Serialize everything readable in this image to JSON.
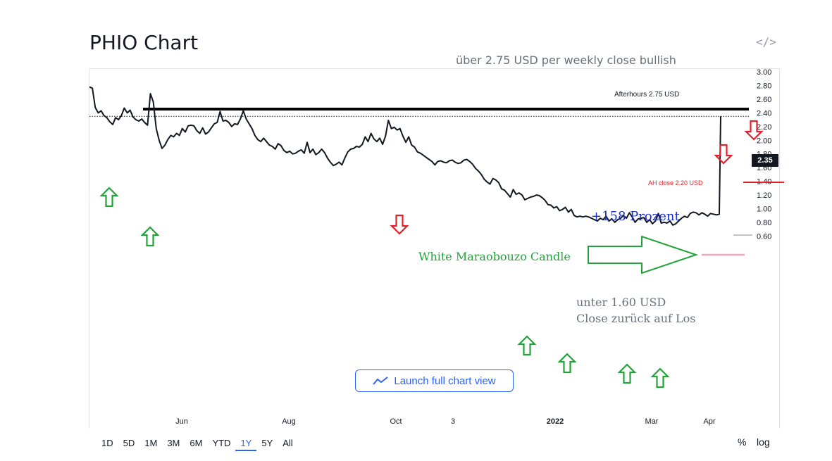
{
  "header": {
    "title": "PHIO Chart",
    "embed_icon": "code-icon"
  },
  "chart_data": {
    "type": "line",
    "title": "PHIO Chart",
    "ylim": [
      0.55,
      3.0
    ],
    "y_ticks": [
      "3.00",
      "2.80",
      "2.60",
      "2.40",
      "2.20",
      "2.00",
      "1.80",
      "1.60",
      "1.40",
      "1.20",
      "1.00",
      "0.80",
      "0.60"
    ],
    "x_ticks": [
      {
        "label": "Jun",
        "bold": false
      },
      {
        "label": "Aug",
        "bold": false
      },
      {
        "label": "Oct",
        "bold": false
      },
      {
        "label": "3",
        "bold": false
      },
      {
        "label": "2022",
        "bold": true
      },
      {
        "label": "Mar",
        "bold": false
      },
      {
        "label": "Apr",
        "bold": false
      }
    ],
    "last_price": "2.35",
    "series": [
      {
        "values": [
          2.78,
          2.76,
          2.48,
          2.4,
          2.43,
          2.36,
          2.33,
          2.27,
          2.23,
          2.33,
          2.3,
          2.36,
          2.47,
          2.4,
          2.44,
          2.34,
          2.3,
          2.28,
          2.31,
          2.26,
          2.22,
          2.68,
          2.56,
          2.17,
          2.0,
          1.88,
          1.93,
          2.01,
          2.07,
          2.05,
          2.1,
          2.07,
          2.17,
          2.12,
          2.21,
          2.22,
          2.21,
          2.14,
          2.1,
          2.18,
          2.09,
          2.12,
          2.18,
          2.24,
          2.26,
          2.42,
          2.28,
          2.29,
          2.26,
          2.2,
          2.24,
          2.23,
          2.31,
          2.43,
          2.31,
          2.24,
          2.17,
          2.07,
          2.01,
          1.98,
          2.03,
          1.98,
          1.93,
          1.91,
          1.87,
          1.95,
          1.92,
          1.85,
          1.82,
          1.84,
          1.8,
          1.81,
          1.84,
          1.86,
          1.81,
          1.97,
          1.82,
          1.87,
          1.79,
          1.82,
          1.87,
          1.82,
          1.74,
          1.68,
          1.63,
          1.65,
          1.68,
          1.64,
          1.74,
          1.83,
          1.87,
          1.88,
          1.91,
          1.9,
          1.94,
          2.05,
          1.98,
          2.1,
          2.02,
          1.98,
          2.03,
          1.94,
          2.06,
          2.29,
          2.17,
          2.19,
          2.15,
          2.17,
          2.06,
          1.97,
          2.05,
          1.93,
          1.9,
          1.83,
          1.81,
          1.78,
          1.75,
          1.72,
          1.69,
          1.64,
          1.69,
          1.7,
          1.68,
          1.67,
          1.7,
          1.71,
          1.68,
          1.66,
          1.67,
          1.71,
          1.72,
          1.69,
          1.65,
          1.59,
          1.55,
          1.5,
          1.43,
          1.39,
          1.36,
          1.44,
          1.42,
          1.38,
          1.29,
          1.27,
          1.22,
          1.17,
          1.28,
          1.21,
          1.23,
          1.2,
          1.13,
          1.15,
          1.17,
          1.18,
          1.2,
          1.19,
          1.16,
          1.12,
          1.06,
          1.05,
          1.01,
          1.03,
          0.97,
          0.99,
          1.02,
          0.95,
          0.99,
          0.9,
          0.88,
          0.89,
          0.88,
          0.89,
          0.88,
          0.86,
          0.84,
          0.82,
          0.86,
          0.84,
          0.89,
          0.82,
          0.85,
          0.8,
          0.84,
          0.86,
          0.9,
          0.86,
          0.94,
          0.88,
          0.8,
          0.85,
          0.86,
          0.87,
          0.8,
          0.84,
          0.78,
          0.82,
          0.93,
          0.79,
          0.8,
          0.79,
          0.82,
          0.76,
          0.78,
          0.82,
          0.86,
          0.89,
          0.87,
          0.93,
          0.95,
          0.94,
          0.91,
          0.94,
          0.92,
          0.89,
          0.93,
          0.92,
          0.91,
          0.92,
          2.35
        ]
      }
    ]
  },
  "annotations": {
    "weekly_close": "über 2.75 USD per weekly close bullish",
    "afterhours": "Afterhours 2.75 USD",
    "ah_close": "AH close 2.20 USD",
    "prozent": "+158 Prozent",
    "candle": "White Maraobouzo Candle",
    "unter_line1": "unter 1.60 USD",
    "unter_line2": "Close zurück auf Los"
  },
  "colors": {
    "line": "#131722",
    "green_arrow": "#22a33a",
    "red_arrow": "#e0202a",
    "blue_text": "#1a2fd1",
    "accent": "#2962ff",
    "pink_line": "#f4a6c1"
  },
  "launch_button": {
    "label": "Launch full chart view",
    "icon": "trend-line-icon"
  },
  "ranges": [
    {
      "label": "1D",
      "active": false
    },
    {
      "label": "5D",
      "active": false
    },
    {
      "label": "1M",
      "active": false
    },
    {
      "label": "3M",
      "active": false
    },
    {
      "label": "6M",
      "active": false
    },
    {
      "label": "YTD",
      "active": false
    },
    {
      "label": "1Y",
      "active": true
    },
    {
      "label": "5Y",
      "active": false
    },
    {
      "label": "All",
      "active": false
    }
  ],
  "scale_toggles": {
    "percent": "%",
    "log": "log"
  }
}
